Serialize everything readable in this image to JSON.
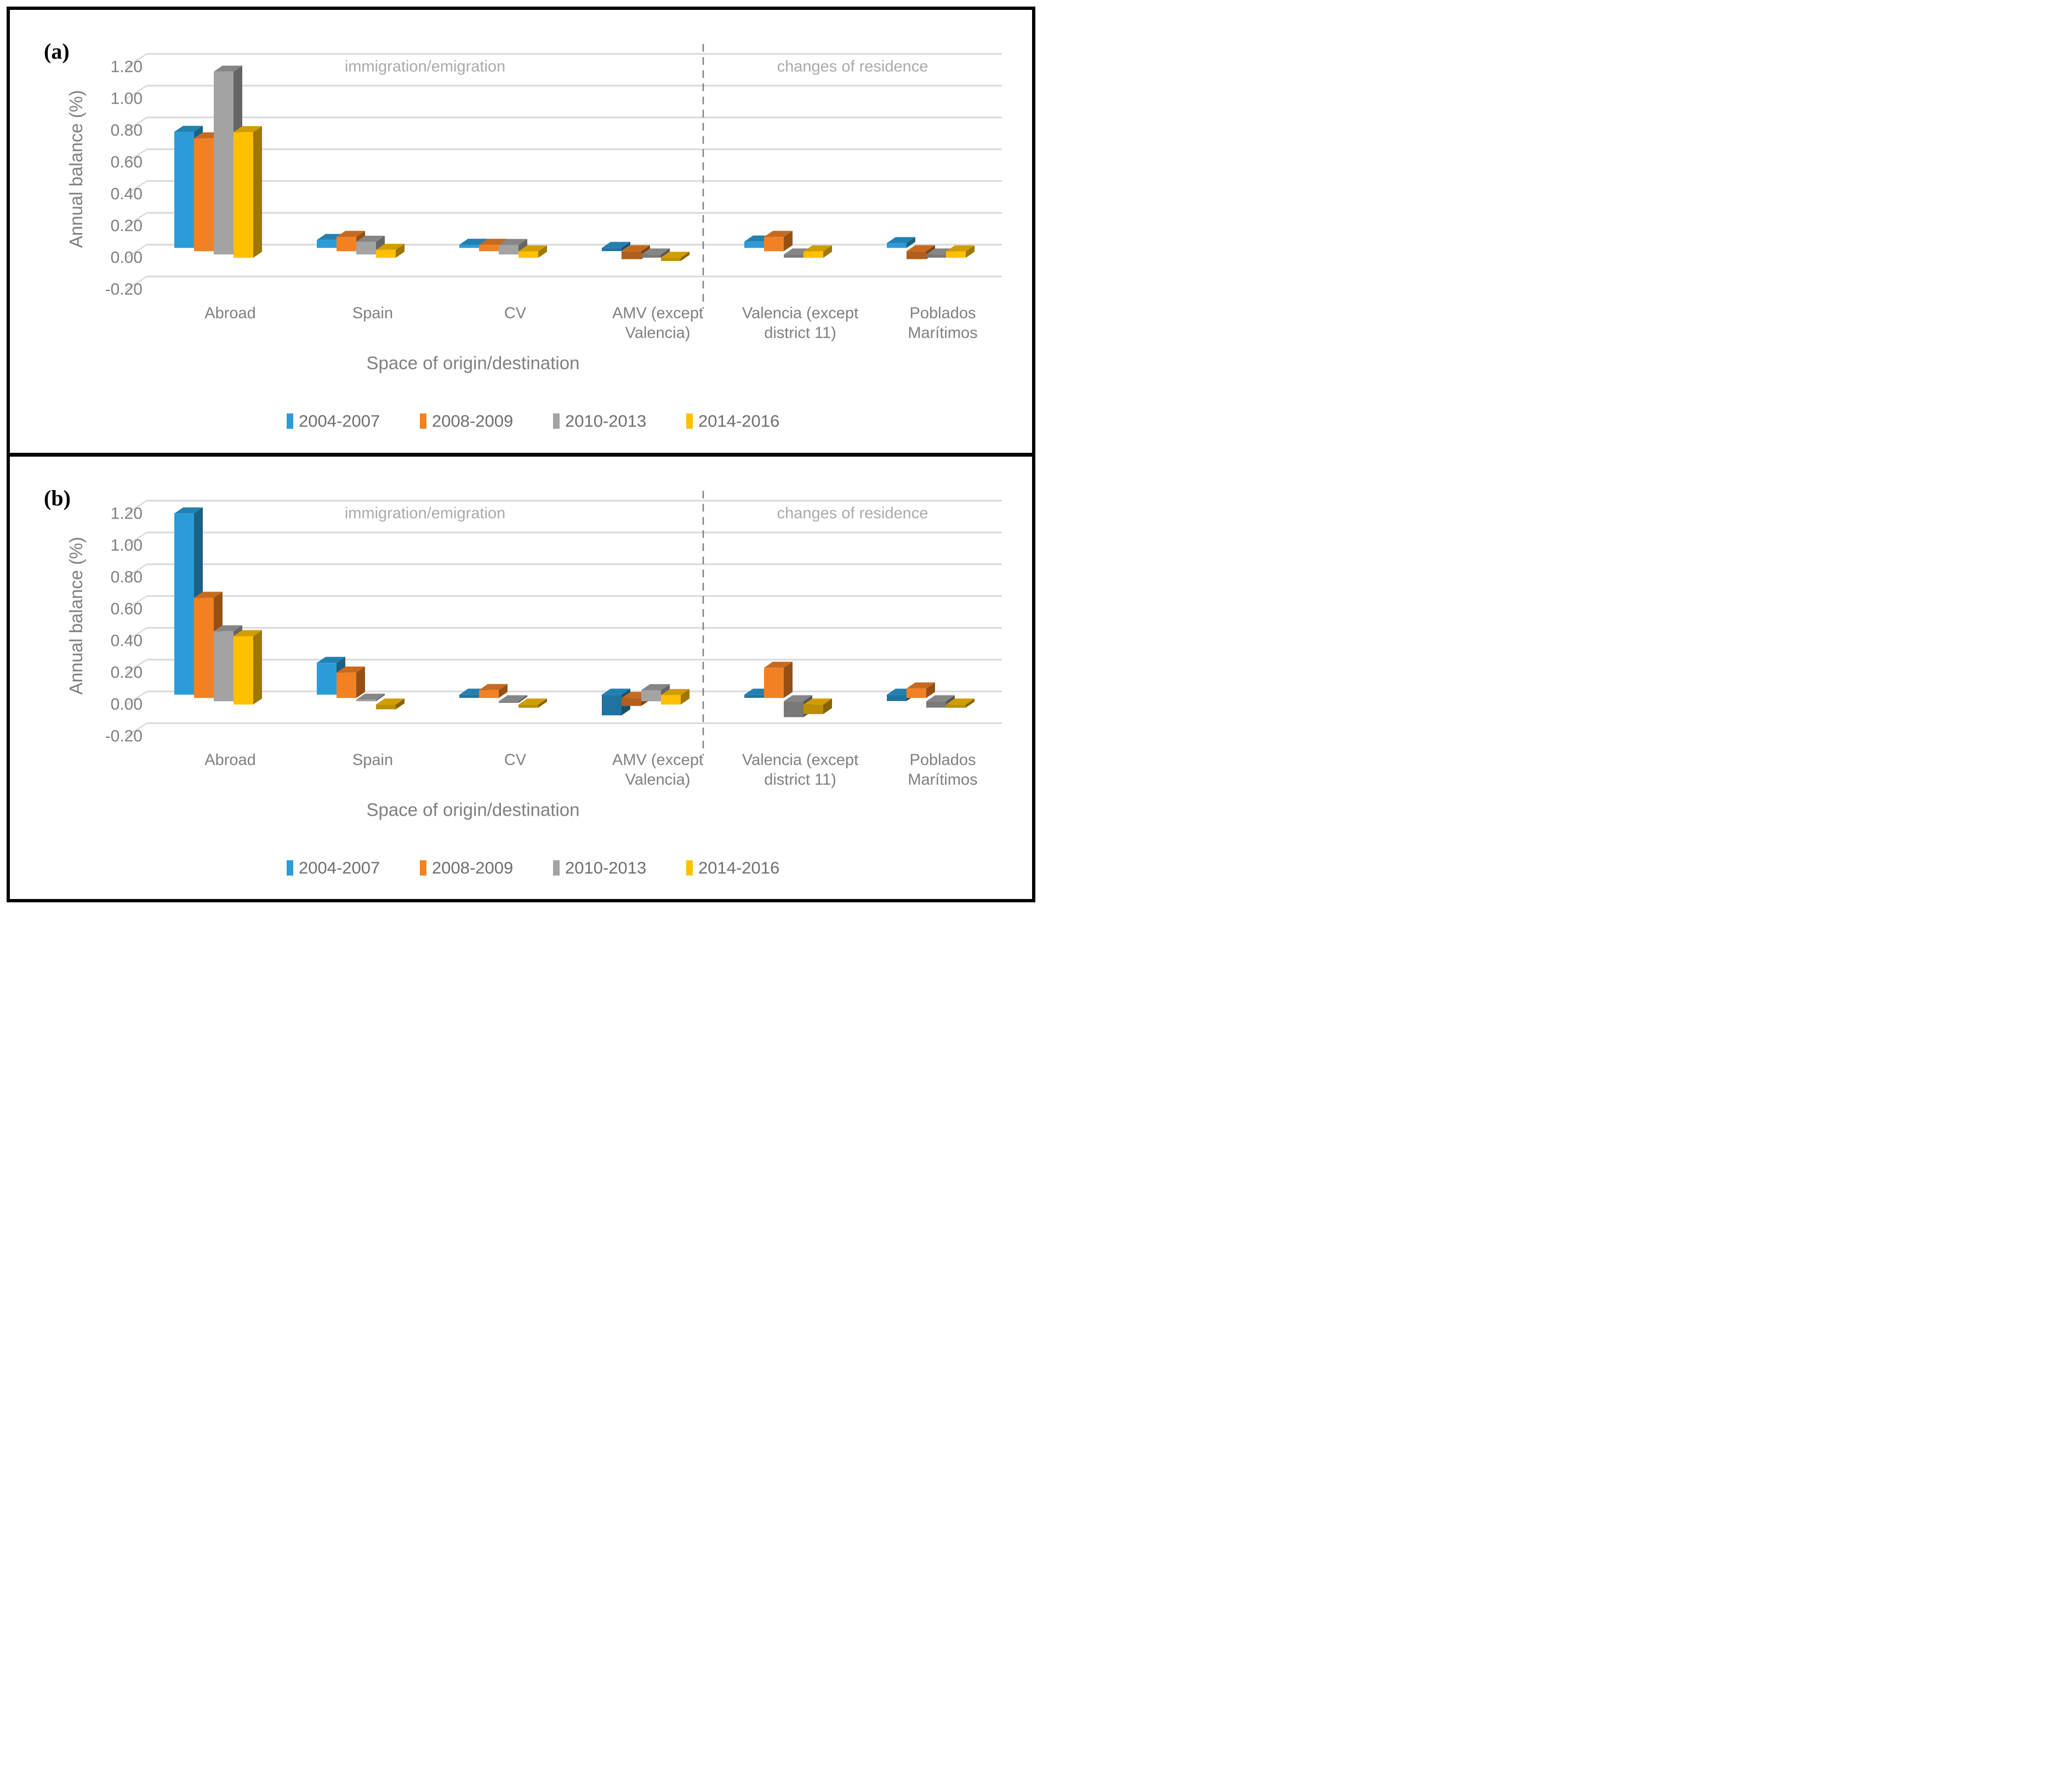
{
  "panels": [
    {
      "label": "(a)"
    },
    {
      "label": "(b)"
    }
  ],
  "colors": {
    "series_blue": "#2B9CD8",
    "series_orange": "#F28124",
    "series_gray": "#A3A3A3",
    "series_yellow": "#FFC000",
    "gridline": "#D9D9D9",
    "axis_text": "#7F7F7F",
    "annotation_text": "#AAAAAA",
    "dashed_divider": "#808080",
    "frame": "#000000"
  },
  "chart_data": [
    {
      "type": "bar",
      "panel": "(a)",
      "ylabel": "Annual balance (%)",
      "xlabel": "Space of origin/destination",
      "ylim": [
        -0.2,
        1.2
      ],
      "ytick_step": 0.2,
      "yticks": [
        "1.20",
        "1.00",
        "0.80",
        "0.60",
        "0.40",
        "0.20",
        "0.00",
        "-0.20"
      ],
      "grid": true,
      "legend_position": "bottom",
      "annotation_left": "immigration/emigration",
      "annotation_right": "changes of residence",
      "divider_after_category_index": 3,
      "categories": [
        [
          "Abroad"
        ],
        [
          "Spain"
        ],
        [
          "CV"
        ],
        [
          "AMV (except",
          "Valencia)"
        ],
        [
          "Valencia (except",
          "district 11)"
        ],
        [
          "Poblados",
          "Marítimos"
        ]
      ],
      "series": [
        {
          "name": "2004-2007",
          "color": "#2B9CD8",
          "values": [
            0.73,
            0.05,
            0.02,
            -0.02,
            0.04,
            0.03
          ]
        },
        {
          "name": "2008-2009",
          "color": "#F28124",
          "values": [
            0.71,
            0.09,
            0.04,
            -0.05,
            0.09,
            -0.05
          ]
        },
        {
          "name": "2010-2013",
          "color": "#A3A3A3",
          "values": [
            1.15,
            0.08,
            0.06,
            -0.02,
            -0.02,
            -0.02
          ]
        },
        {
          "name": "2014-2016",
          "color": "#FFC000",
          "values": [
            0.79,
            0.05,
            0.04,
            -0.02,
            0.04,
            0.04
          ]
        }
      ]
    },
    {
      "type": "bar",
      "panel": "(b)",
      "ylabel": "Annual balance (%)",
      "xlabel": "Space of origin/destination",
      "ylim": [
        -0.2,
        1.2
      ],
      "ytick_step": 0.2,
      "yticks": [
        "1.20",
        "1.00",
        "0.80",
        "0.60",
        "0.40",
        "0.20",
        "0.00",
        "-0.20"
      ],
      "grid": true,
      "legend_position": "bottom",
      "annotation_left": "immigration/emigration",
      "annotation_right": "changes of residence",
      "divider_after_category_index": 3,
      "categories": [
        [
          "Abroad"
        ],
        [
          "Spain"
        ],
        [
          "CV"
        ],
        [
          "AMV (except",
          "Valencia)"
        ],
        [
          "Valencia (except",
          "district 11)"
        ],
        [
          "Poblados",
          "Marítimos"
        ]
      ],
      "series": [
        {
          "name": "2004-2007",
          "color": "#2B9CD8",
          "values": [
            1.14,
            0.2,
            -0.02,
            -0.13,
            -0.02,
            -0.04
          ]
        },
        {
          "name": "2008-2009",
          "color": "#F28124",
          "values": [
            0.63,
            0.16,
            0.05,
            -0.05,
            0.19,
            0.06
          ]
        },
        {
          "name": "2010-2013",
          "color": "#A3A3A3",
          "values": [
            0.44,
            0.01,
            -0.01,
            0.07,
            -0.1,
            -0.04
          ]
        },
        {
          "name": "2014-2016",
          "color": "#FFC000",
          "values": [
            0.43,
            -0.03,
            -0.02,
            0.06,
            -0.06,
            -0.02
          ]
        }
      ]
    }
  ]
}
